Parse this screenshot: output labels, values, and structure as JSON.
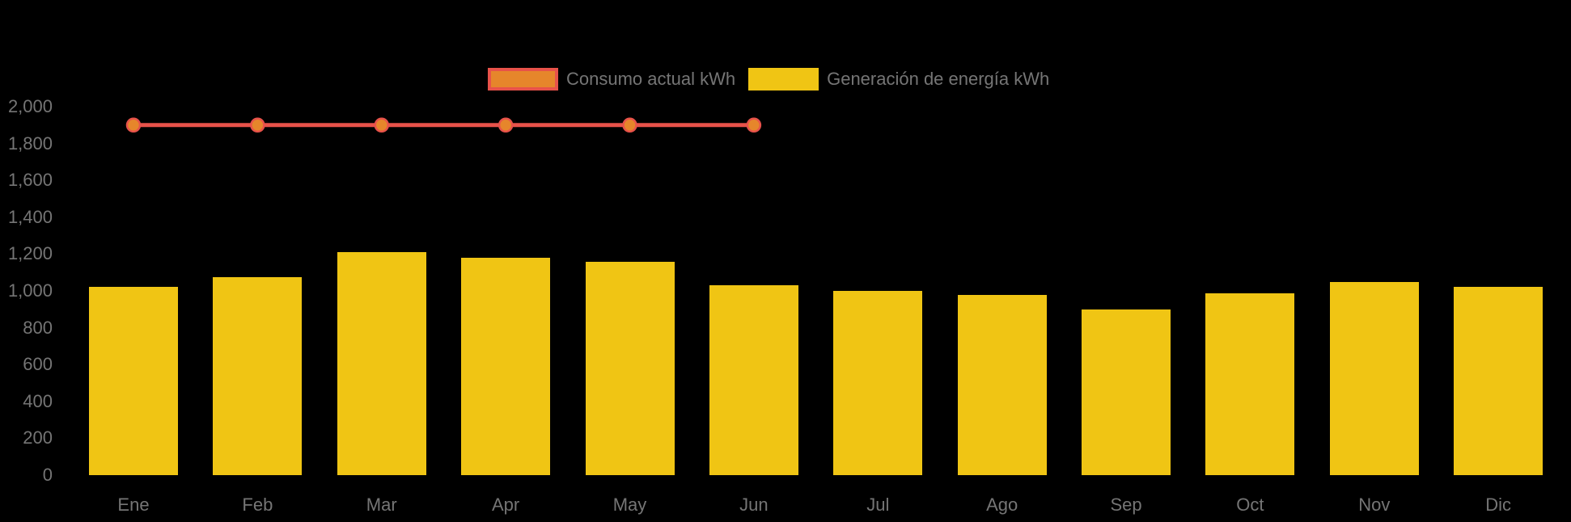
{
  "chart_data": {
    "type": "bar",
    "title": "",
    "xlabel": "",
    "ylabel": "",
    "categories": [
      "Ene",
      "Feb",
      "Mar",
      "Apr",
      "May",
      "Jun",
      "Jul",
      "Ago",
      "Sep",
      "Oct",
      "Nov",
      "Dic"
    ],
    "series": [
      {
        "name": "Consumo actual kWh",
        "type": "line",
        "color": "#E8524A",
        "marker_color": "#E6862B",
        "values": [
          1900,
          1900,
          1900,
          1900,
          1900,
          1900,
          null,
          null,
          null,
          null,
          null,
          null
        ]
      },
      {
        "name": "Generación de energía kWh",
        "type": "bar",
        "color": "#F0C514",
        "values": [
          1020,
          1075,
          1210,
          1180,
          1160,
          1030,
          1000,
          980,
          900,
          985,
          1050,
          1020
        ]
      }
    ],
    "ylim": [
      0,
      2000
    ],
    "y_ticks": [
      0,
      200,
      400,
      600,
      800,
      1000,
      1200,
      1400,
      1600,
      1800,
      2000
    ],
    "y_tick_labels": [
      "0",
      "200",
      "400",
      "600",
      "800",
      "1,000",
      "1,200",
      "1,400",
      "1,600",
      "1,800",
      "2,000"
    ],
    "legend_position": "top",
    "grid": false,
    "background": "#000000",
    "text_color": "#757575"
  }
}
